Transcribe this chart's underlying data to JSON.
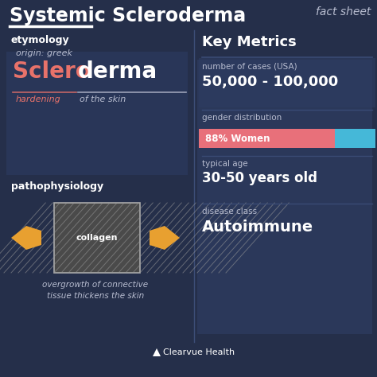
{
  "title_part1": "Systemic Scleroderma",
  "subtitle": "fact sheet",
  "bg_color": "#252f4a",
  "panel_left_color": "#2c3a5e",
  "panel_right_color": "#2e3d62",
  "white": "#ffffff",
  "light_gray": "#b8bdd0",
  "salmon": "#e8726a",
  "pink_bar": "#e8707a",
  "blue_bar": "#45b8d8",
  "gold_arrow": "#e8a030",
  "collagen_bg": "#555555",
  "collagen_stripe": "#888888",
  "etymology_label": "etymology",
  "origin_text": "origin: greek",
  "sclero_text": "Sclero",
  "derma_text": "derma",
  "hardening_text": "hardening",
  "skin_text": "of the skin",
  "patho_label": "pathophysiology",
  "collagen_text": "collagen",
  "overgrowth_text": "overgrowth of connective\ntissue thickens the skin",
  "key_metrics": "Key Metrics",
  "cases_label": "number of cases (USA)",
  "cases_value": "50,000 - 100,000",
  "gender_label": "gender distribution",
  "gender_value": "88% Women",
  "age_label": "typical age",
  "age_value": "30-50 years old",
  "disease_label": "disease class",
  "disease_value": "Autoimmune",
  "footer": "Clearvue Health",
  "divider_color": "#3d4e78",
  "separator_color": "#3a4b75"
}
